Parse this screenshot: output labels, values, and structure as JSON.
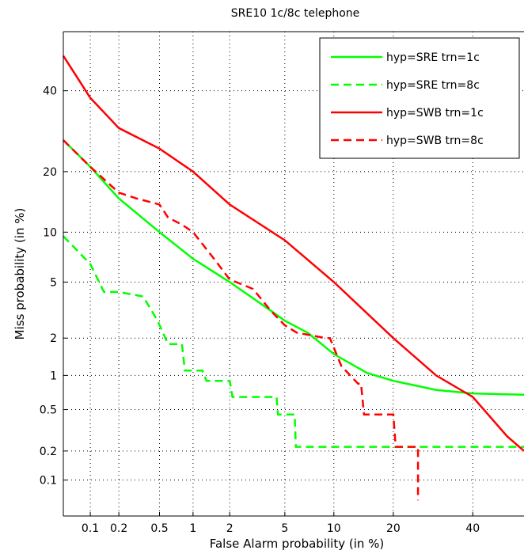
{
  "chart_data": {
    "type": "line",
    "title": "SRE10 1c/8c telephone",
    "xlabel": "False Alarm probability (in %)",
    "ylabel": "Miss probability (in %)",
    "xscale": "probit",
    "yscale": "probit",
    "xlim": [
      0.05,
      55
    ],
    "ylim": [
      0.04,
      57
    ],
    "xticks": [
      0.1,
      0.2,
      0.5,
      1,
      2,
      5,
      10,
      20,
      40
    ],
    "xtick_labels": [
      "0.1",
      "0.2",
      "0.5",
      "1",
      "2",
      "5",
      "10",
      "20",
      "40"
    ],
    "yticks": [
      0.1,
      0.2,
      0.5,
      1,
      2,
      5,
      10,
      20,
      40
    ],
    "ytick_labels": [
      "0.1",
      "0.2",
      "0.5",
      "1",
      "2",
      "5",
      "10",
      "20",
      "40"
    ],
    "grid": true,
    "grid_style": "dotted",
    "legend_position": "top-right",
    "series": [
      {
        "name": "hyp=SRE trn=1c",
        "color": "#00ff00",
        "dash": "solid",
        "x": [
          0.05,
          0.1,
          0.2,
          0.5,
          1,
          2,
          4,
          5,
          7,
          10,
          15,
          20,
          30,
          40,
          55
        ],
        "y": [
          27,
          21,
          15,
          10,
          7,
          5,
          3.2,
          2.7,
          2.2,
          1.5,
          1.05,
          0.9,
          0.75,
          0.7,
          0.68
        ]
      },
      {
        "name": "hyp=SRE trn=8c",
        "color": "#00ff00",
        "dash": "dashed",
        "x": [
          0.05,
          0.1,
          0.14,
          0.2,
          0.35,
          0.48,
          0.6,
          0.8,
          0.85,
          1,
          1.2,
          1.3,
          2,
          2.1,
          4.4,
          4.5,
          5.8,
          5.9,
          55
        ],
        "y": [
          9.5,
          6.5,
          4.3,
          4.3,
          4.0,
          2.7,
          1.8,
          1.8,
          1.1,
          1.1,
          1.1,
          0.9,
          0.9,
          0.65,
          0.65,
          0.45,
          0.45,
          0.22,
          0.22
        ]
      },
      {
        "name": "hyp=SWB trn=1c",
        "color": "#ff0000",
        "dash": "solid",
        "x": [
          0.05,
          0.1,
          0.2,
          0.5,
          1,
          2,
          5,
          10,
          20,
          30,
          40,
          50,
          55
        ],
        "y": [
          50,
          38,
          30,
          25,
          20,
          14,
          9,
          5,
          2,
          1,
          0.65,
          0.28,
          0.2
        ]
      },
      {
        "name": "hyp=SWB trn=8c",
        "color": "#ff0000",
        "dash": "dashed",
        "x": [
          0.05,
          0.1,
          0.2,
          0.3,
          0.5,
          0.6,
          0.8,
          1,
          1.5,
          2,
          3,
          4,
          5,
          6,
          9,
          9.5,
          11,
          13.5,
          14,
          14.5,
          20,
          20.5,
          25,
          25.5,
          25.5
        ],
        "y": [
          27,
          21,
          16,
          15,
          14,
          12,
          11,
          10,
          7,
          5.2,
          4.5,
          3.2,
          2.5,
          2.2,
          2.0,
          2.0,
          1.2,
          0.85,
          0.85,
          0.45,
          0.45,
          0.22,
          0.22,
          0.22,
          0.06
        ]
      }
    ]
  }
}
